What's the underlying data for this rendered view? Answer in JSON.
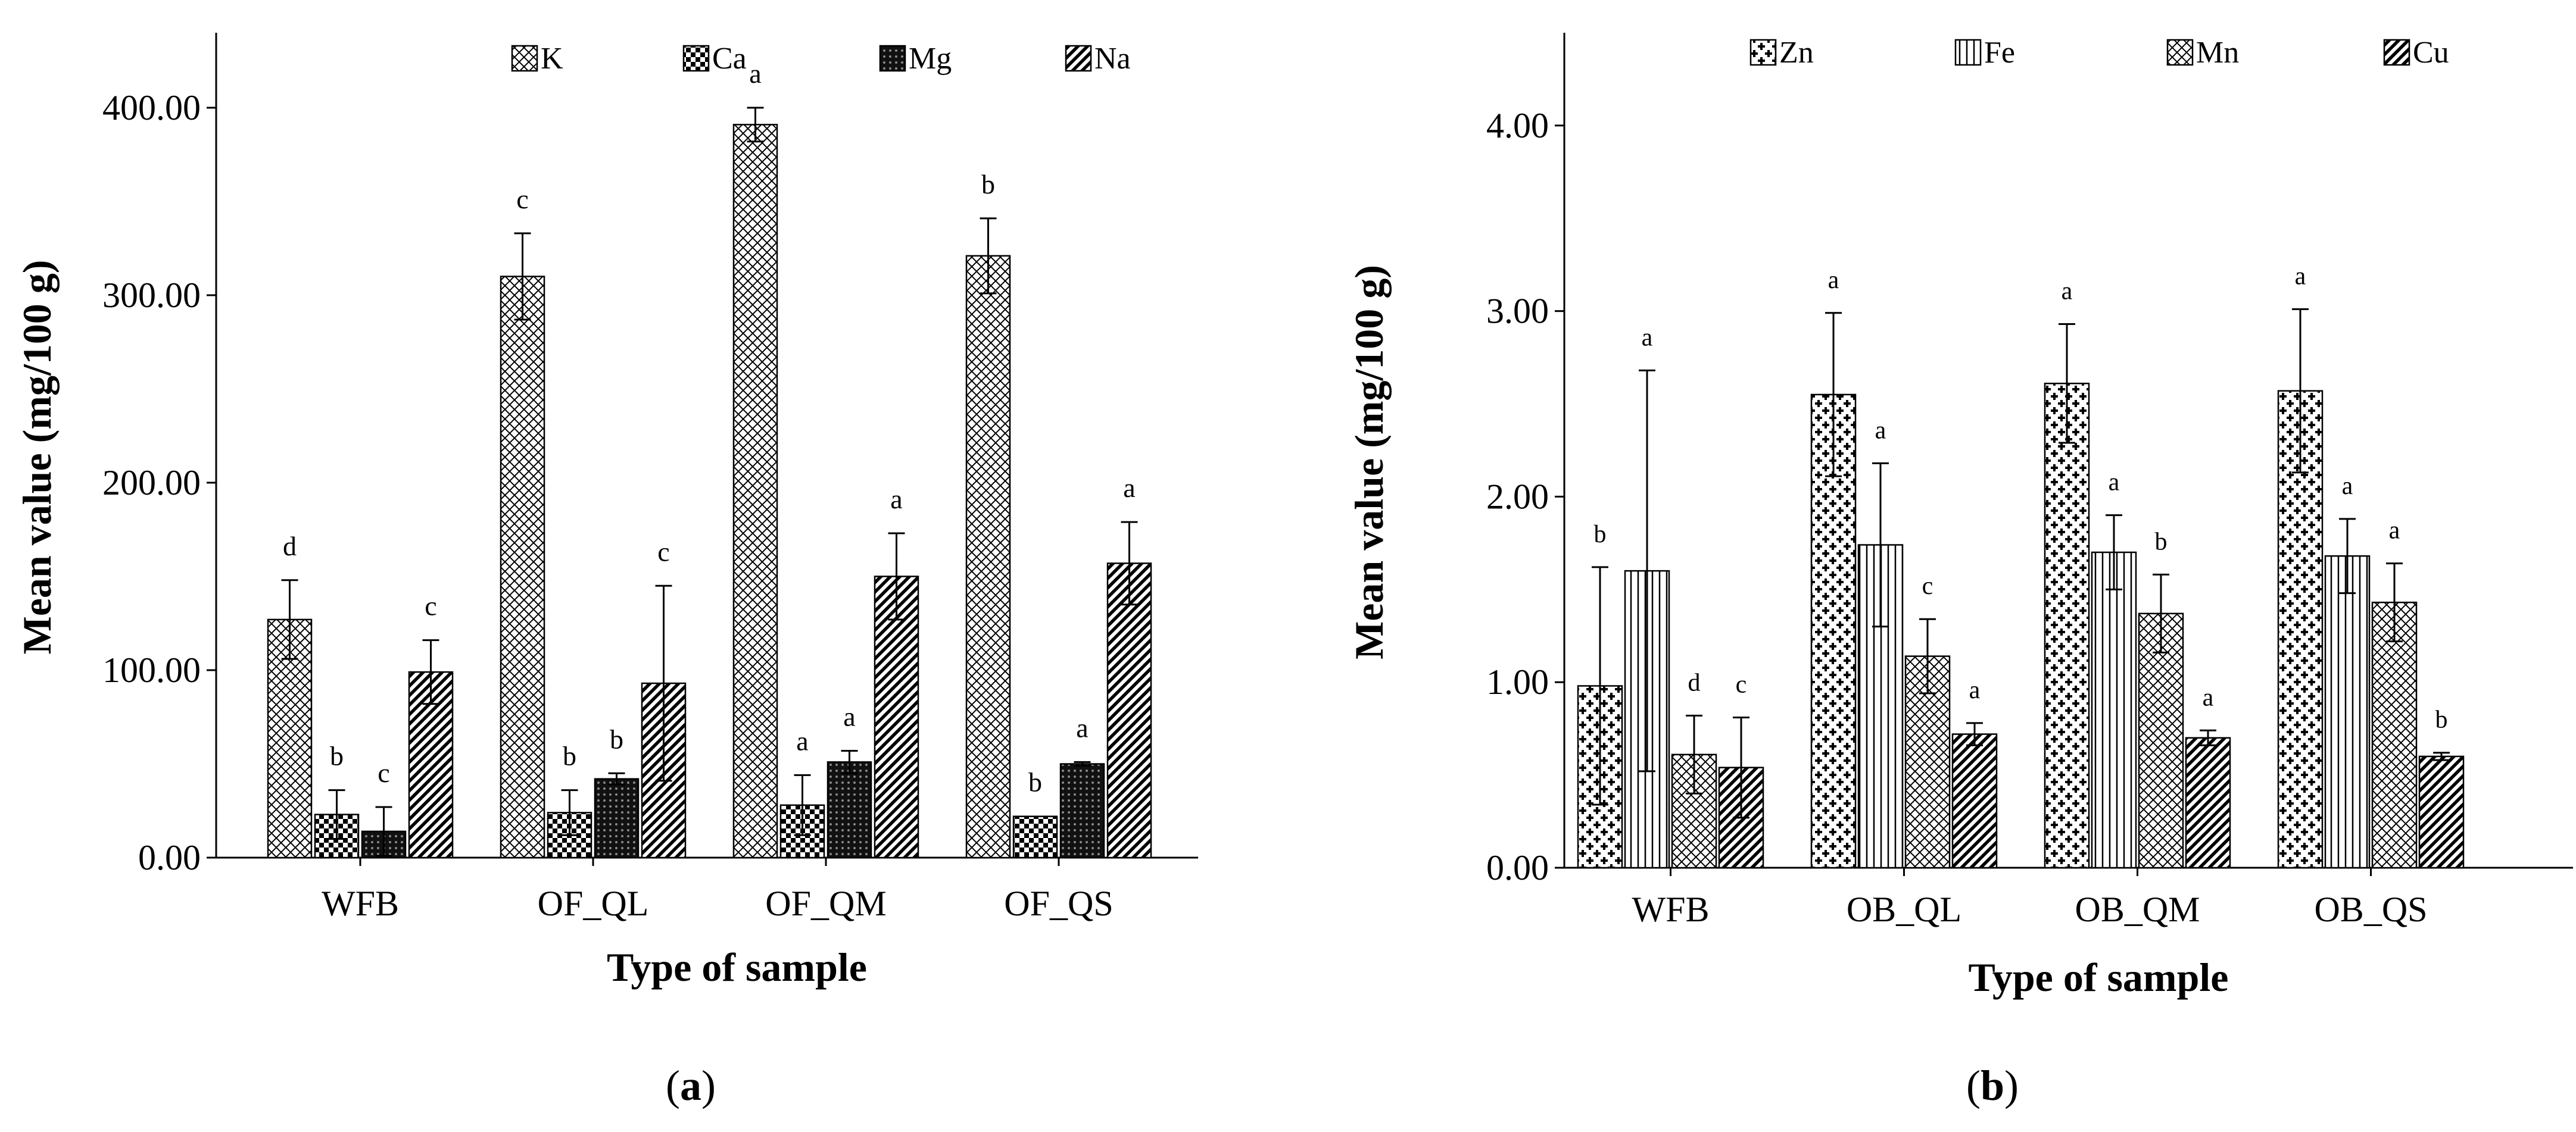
{
  "colors": {
    "ink": "#000000",
    "background": "#ffffff",
    "grid": "#000000"
  },
  "chart_data": [
    {
      "type": "bar",
      "panel_label": "(a)",
      "title": "",
      "xlabel": "Type of sample",
      "ylabel": "Mean value (mg/100 g)",
      "ylim": [
        0,
        440
      ],
      "yticks": [
        0,
        100,
        200,
        300,
        400
      ],
      "ytick_labels": [
        "0.00",
        "100.00",
        "200.00",
        "300.00",
        "400.00"
      ],
      "categories": [
        "WFB",
        "OF_QL",
        "OF_QM",
        "OF_QS"
      ],
      "legend_position": "top",
      "series": [
        {
          "name": "K",
          "pattern": "crosshatch",
          "values": [
            127,
            310,
            391,
            321
          ],
          "errors": [
            21,
            23,
            9,
            20
          ],
          "letters": [
            "d",
            "c",
            "a",
            "b"
          ]
        },
        {
          "name": "Ca",
          "pattern": "checker",
          "values": [
            23,
            24,
            28,
            22
          ],
          "errors": [
            13,
            12,
            16,
            0
          ],
          "letters": [
            "b",
            "b",
            "a",
            "b"
          ]
        },
        {
          "name": "Mg",
          "pattern": "dots",
          "values": [
            14,
            42,
            51,
            50
          ],
          "errors": [
            13,
            3,
            6,
            1
          ],
          "letters": [
            "c",
            "b",
            "a",
            "a"
          ]
        },
        {
          "name": "Na",
          "pattern": "diagonal",
          "values": [
            99,
            93,
            150,
            157
          ],
          "errors": [
            17,
            52,
            23,
            22
          ],
          "letters": [
            "c",
            "c",
            "a",
            "a"
          ]
        }
      ]
    },
    {
      "type": "bar",
      "panel_label": "(b)",
      "title": "",
      "xlabel": "Type of sample",
      "ylabel": "Mean value (mg/100 g)",
      "ylim": [
        0,
        4.5
      ],
      "yticks": [
        0,
        1,
        2,
        3,
        4
      ],
      "ytick_labels": [
        "0.00",
        "1.00",
        "2.00",
        "3.00",
        "4.00"
      ],
      "categories": [
        "WFB",
        "OB_QL",
        "OB_QM",
        "OB_QS"
      ],
      "legend_position": "top",
      "series": [
        {
          "name": "Zn",
          "pattern": "plus",
          "values": [
            0.98,
            2.55,
            2.61,
            2.57
          ],
          "errors": [
            0.64,
            0.44,
            0.32,
            0.44
          ],
          "letters": [
            "b",
            "a",
            "a",
            "a"
          ]
        },
        {
          "name": "Fe",
          "pattern": "vertical",
          "values": [
            1.6,
            1.74,
            1.7,
            1.68
          ],
          "errors": [
            1.08,
            0.44,
            0.2,
            0.2
          ],
          "letters": [
            "a",
            "a",
            "a",
            "a"
          ]
        },
        {
          "name": "Mn",
          "pattern": "crosshatch",
          "values": [
            0.61,
            1.14,
            1.37,
            1.43
          ],
          "errors": [
            0.21,
            0.2,
            0.21,
            0.21
          ],
          "letters": [
            "d",
            "c",
            "b",
            "a"
          ]
        },
        {
          "name": "Cu",
          "pattern": "diagonal",
          "values": [
            0.54,
            0.72,
            0.7,
            0.6
          ],
          "errors": [
            0.27,
            0.06,
            0.04,
            0.02
          ],
          "letters": [
            "c",
            "a",
            "a",
            "b"
          ]
        }
      ]
    }
  ]
}
